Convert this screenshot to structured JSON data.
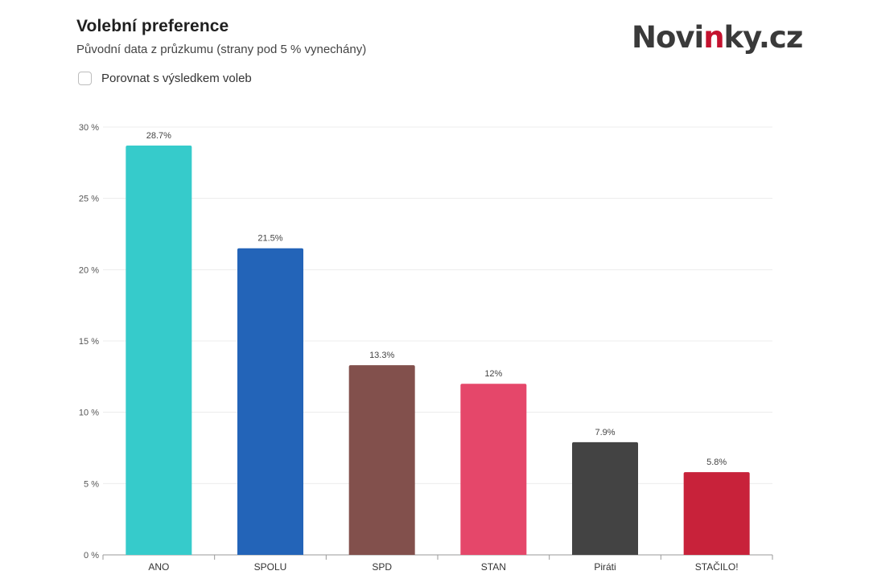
{
  "header": {
    "title": "Volební preference",
    "subtitle": "Původní data z průzkumu (strany pod 5 % vynechány)",
    "compare_label": "Porovnat s výsledkem voleb",
    "compare_checked": false
  },
  "logo": {
    "part1": "Novi",
    "part2": "n",
    "part3": "ky.cz",
    "color": "#3a3a3a",
    "accent_color": "#c4122f"
  },
  "chart_data": {
    "type": "bar",
    "title": "Volební preference",
    "subtitle": "Původní data z průzkumu (strany pod 5 % vynechány)",
    "xlabel": "",
    "ylabel": "",
    "ylim": [
      0,
      30
    ],
    "yticks": [
      0,
      5,
      10,
      15,
      20,
      25,
      30
    ],
    "ytick_suffix": " %",
    "grid": true,
    "categories": [
      "ANO",
      "SPOLU",
      "SPD",
      "STAN",
      "Piráti",
      "STAČILO!"
    ],
    "values": [
      28.7,
      21.5,
      13.3,
      12,
      7.9,
      5.8
    ],
    "value_labels": [
      "28.7%",
      "21.5%",
      "13.3%",
      "12%",
      "7.9%",
      "5.8%"
    ],
    "colors": [
      "#36cbcb",
      "#2364b8",
      "#82504c",
      "#e5476a",
      "#434343",
      "#c8223a"
    ]
  }
}
